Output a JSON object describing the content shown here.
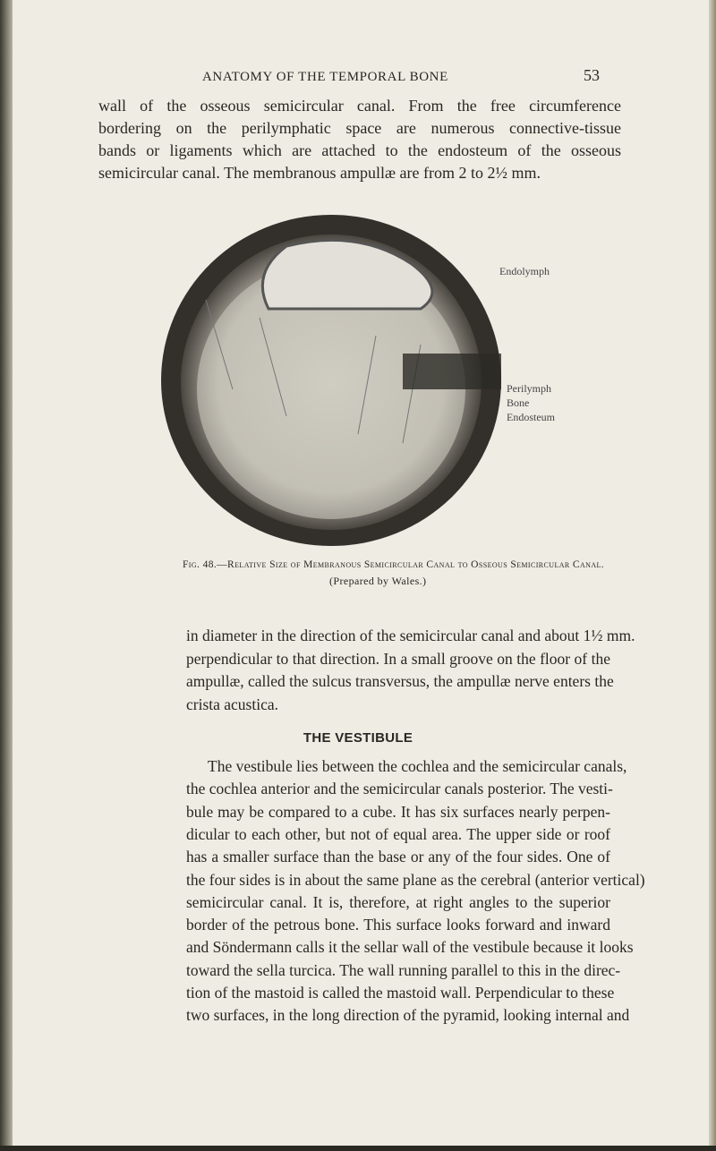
{
  "header": {
    "running_title": "ANATOMY OF THE TEMPORAL BONE",
    "page_number": "53"
  },
  "top_paragraph": {
    "lines": [
      "wall of the osseous semicircular canal. From the free circumference",
      "bordering on the perilymphatic space are numerous connective-tissue",
      "bands or ligaments which are attached to the endosteum of the osseous",
      "semicircular canal. The membranous ampullæ are from 2 to 2½ mm."
    ]
  },
  "figure": {
    "labels": [
      "Endolymph",
      "Perilymph",
      "Bone",
      "Endosteum"
    ],
    "caption": [
      "Fig. 48.—Relative Size of Membranous Semicircular Canal to Osseous Semicircular Canal.",
      "(Prepared by Wales.)"
    ]
  },
  "continued_paragraph": {
    "lines": [
      "in diameter in the direction of the semicircular canal and about 1½ mm.",
      "perpendicular to that direction. In a small groove on the floor of the",
      "ampullæ, called the sulcus transversus, the ampullæ nerve enters the",
      "crista acustica."
    ]
  },
  "section": {
    "heading": "THE VESTIBULE",
    "lines": [
      "The vestibule lies between the cochlea and the semicircular canals,",
      "the cochlea anterior and the semicircular canals posterior. The vesti-",
      "bule may be compared to a cube. It has six surfaces nearly perpen-",
      "dicular to each other, but not of equal area. The upper side or roof",
      "has a smaller surface than the base or any of the four sides. One of",
      "the four sides is in about the same plane as the cerebral (anterior vertical)",
      "semicircular canal. It is, therefore, at right angles to the superior",
      "border of the petrous bone. This surface looks forward and inward",
      "and Söndermann calls it the sellar wall of the vestibule because it looks",
      "toward the sella turcica. The wall running parallel to this in the direc-",
      "tion of the mastoid is called the mastoid wall. Perpendicular to these",
      "two surfaces, in the long direction of the pyramid, looking internal and"
    ]
  }
}
